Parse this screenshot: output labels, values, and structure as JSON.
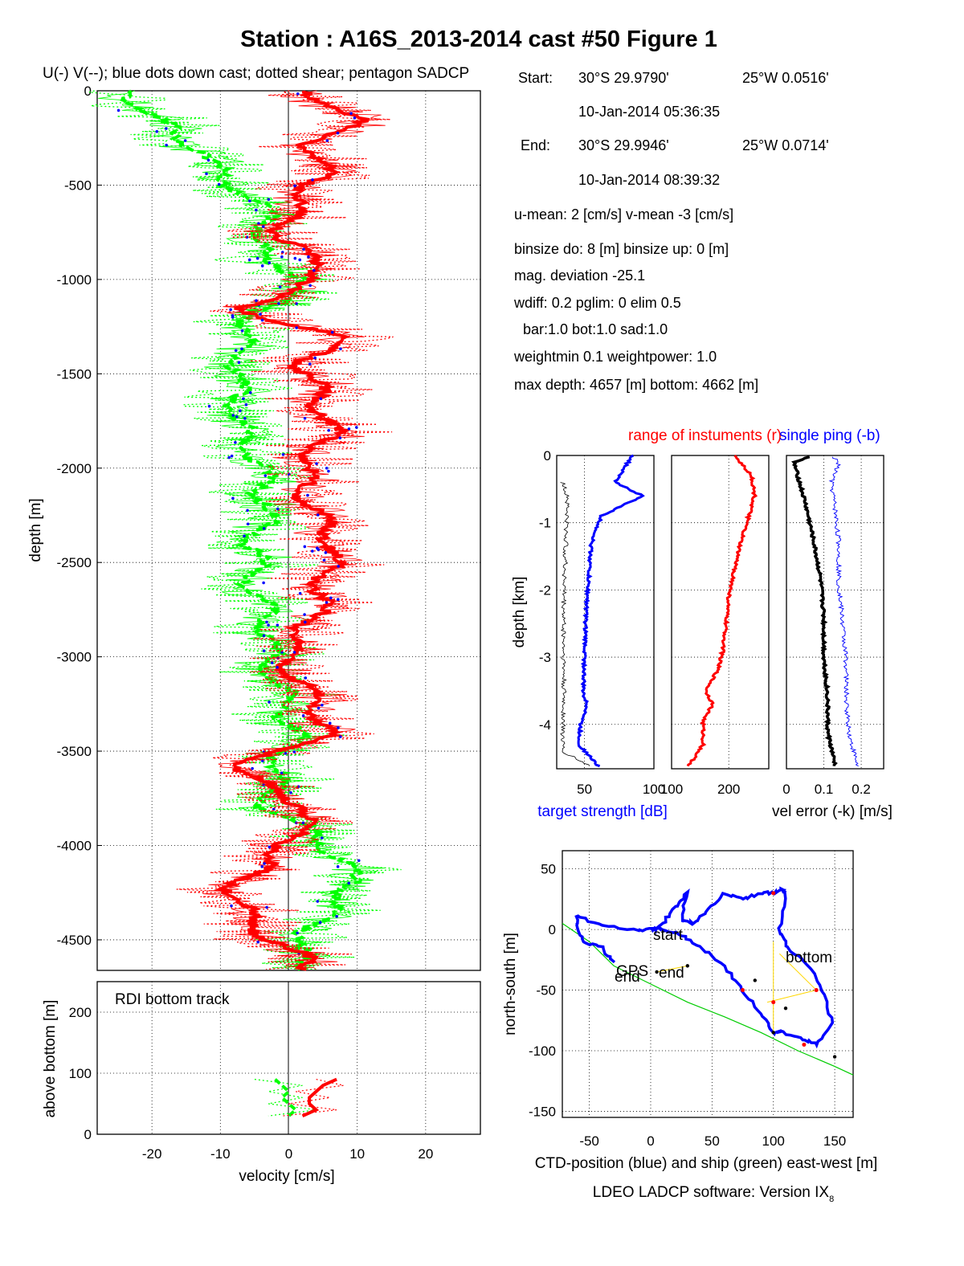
{
  "figure": {
    "title": "Station : A16S_2013-2014 cast #50  Figure 1",
    "footer": "LDEO LADCP software: Version IX",
    "footer_sub": "8"
  },
  "colors": {
    "u_profile": "#ff0000",
    "v_profile": "#00ff00",
    "downcast_dots": "#0000ff",
    "ctd_track": "#0000ff",
    "ship_track": "#00cc00",
    "target_strength": "#0000ff",
    "noise_floor": "#000000",
    "range": "#ff0000",
    "vel_error": "#000000",
    "single_ping": "#0000ff",
    "link_lines": "#ffd700"
  },
  "info": {
    "start_label": "Start:",
    "start_lat": "30°S 29.9790'",
    "start_lon": "25°W  0.0516'",
    "start_time": "10-Jan-2014 05:36:35",
    "end_label": "End:",
    "end_lat": "30°S 29.9946'",
    "end_lon": "25°W  0.0714'",
    "end_time": "10-Jan-2014 08:39:32",
    "means": "u-mean:   2 [cm/s]    v-mean  -3 [cm/s]",
    "binsize": "binsize do:  8 [m]  binsize up:   0 [m]",
    "magdev": "mag. deviation -25.1",
    "wdiff": "wdiff: 0.2  pglim: 0  elim 0.5",
    "weights": "bar:1.0 bot:1.0 sad:1.0",
    "weightmin": "weightmin 0.1  weightpower: 1.0",
    "maxdepth": "max depth: 4657 [m]   bottom: 4662 [m]"
  },
  "chart_data": [
    {
      "id": "velocity_profile",
      "type": "line",
      "title": "U(-) V(--); blue dots down cast; dotted shear; pentagon SADCP",
      "xlabel": "",
      "ylabel": "depth [m]",
      "xlim": [
        -28,
        28
      ],
      "ylim": [
        -4662,
        0
      ],
      "yticks": [
        0,
        -500,
        -1000,
        -1500,
        -2000,
        -2500,
        -3000,
        -3500,
        -4000,
        -4500
      ],
      "grid": true,
      "series": [
        {
          "name": "U",
          "depth": [
            0,
            -150,
            -300,
            -450,
            -600,
            -750,
            -900,
            -1000,
            -1150,
            -1300,
            -1450,
            -1600,
            -1800,
            -2000,
            -2200,
            -2400,
            -2600,
            -2800,
            -3000,
            -3200,
            -3400,
            -3600,
            -3800,
            -4000,
            -4200,
            -4400,
            -4600
          ],
          "values": [
            3,
            10,
            3,
            5,
            1,
            -1,
            3,
            5,
            -8,
            8,
            2,
            4,
            6,
            2,
            3,
            7,
            5,
            4,
            -1,
            3,
            6,
            -8,
            3,
            0,
            -8,
            -6,
            2
          ]
        },
        {
          "name": "V",
          "depth": [
            0,
            -150,
            -300,
            -450,
            -600,
            -750,
            -900,
            -1000,
            -1150,
            -1300,
            -1450,
            -1600,
            -1800,
            -2000,
            -2200,
            -2400,
            -2600,
            -2800,
            -3000,
            -3200,
            -3400,
            -3600,
            -3800,
            -4000,
            -4200,
            -4400,
            -4600
          ],
          "values": [
            -23,
            -20,
            -13,
            -10,
            -4,
            -3,
            -5,
            4,
            -4,
            -7,
            -7,
            -8,
            -7,
            -4,
            -3,
            -5,
            -5,
            -3,
            -3,
            -1,
            1,
            -2,
            -3,
            6,
            10,
            4,
            1
          ]
        }
      ]
    },
    {
      "id": "bottom_track",
      "type": "line",
      "title": "RDI bottom track",
      "xlabel": "velocity [cm/s]",
      "ylabel": "above bottom [m]",
      "xlim": [
        -28,
        28
      ],
      "ylim": [
        0,
        250
      ],
      "xticks": [
        -20,
        -10,
        0,
        10,
        20
      ],
      "yticks": [
        0,
        100,
        200
      ],
      "grid": true,
      "series": [
        {
          "name": "U",
          "height": [
            90,
            80,
            70,
            60,
            50,
            40,
            30
          ],
          "values": [
            7,
            5,
            4,
            3,
            3,
            4,
            2
          ]
        },
        {
          "name": "V",
          "height": [
            90,
            80,
            70,
            60,
            50,
            40,
            30
          ],
          "values": [
            -2,
            -1,
            0,
            -1,
            0,
            1,
            0
          ]
        }
      ]
    },
    {
      "id": "target_strength",
      "type": "line",
      "title": "",
      "xlabel": "target strength [dB]",
      "ylabel": "depth [km]",
      "xlim": [
        30,
        100
      ],
      "ylim": [
        -4.66,
        0
      ],
      "xticks": [
        50,
        100
      ],
      "yticks": [
        0,
        -1,
        -2,
        -3,
        -4
      ],
      "grid": true,
      "series": [
        {
          "name": "",
          "depth": [
            0,
            -0.2,
            -0.4,
            -0.6,
            -0.9,
            -1.3,
            -1.8,
            -2.4,
            -3.0,
            -3.5,
            -3.75,
            -4.0,
            -4.3,
            -4.62
          ],
          "values": [
            85,
            78,
            72,
            92,
            62,
            55,
            53,
            51,
            50,
            49,
            52,
            47,
            46,
            60
          ]
        },
        {
          "name": "",
          "depth": [
            -0.4,
            -0.6,
            -1.0,
            -1.6,
            -2.2,
            -3.0,
            -3.8,
            -4.4,
            -4.62
          ],
          "values": [
            34,
            38,
            37,
            36,
            35,
            35,
            35,
            34,
            54
          ]
        }
      ]
    },
    {
      "id": "range",
      "type": "line",
      "title": "range of instuments (r)",
      "xlabel": "",
      "ylabel": "",
      "xlim": [
        100,
        270
      ],
      "ylim": [
        -4.66,
        0
      ],
      "xticks": [
        100,
        200
      ],
      "yticks": [
        0,
        -1,
        -2,
        -3,
        -4
      ],
      "grid": true,
      "series": [
        {
          "name": "",
          "depth": [
            0,
            -0.15,
            -0.3,
            -0.6,
            -0.9,
            -1.3,
            -1.7,
            -2.1,
            -2.5,
            -2.9,
            -3.2,
            -3.5,
            -3.7,
            -3.95,
            -4.3,
            -4.62
          ],
          "values": [
            210,
            225,
            240,
            245,
            235,
            220,
            210,
            200,
            195,
            190,
            180,
            160,
            172,
            155,
            155,
            130
          ]
        }
      ]
    },
    {
      "id": "vel_error",
      "type": "line",
      "title": "single ping (-b)",
      "xlabel": "vel error (-k) [m/s]",
      "ylabel": "",
      "xlim": [
        0,
        0.26
      ],
      "ylim": [
        -4.66,
        0
      ],
      "xticks": [
        0,
        0.1,
        0.2
      ],
      "yticks": [
        0,
        -1,
        -2,
        -3,
        -4
      ],
      "grid": true,
      "series": [
        {
          "name": "",
          "depth": [
            -0.02,
            -0.1,
            -0.3,
            -0.7,
            -1.2,
            -1.8,
            -2.4,
            -3.0,
            -3.6,
            -4.1,
            -4.62
          ],
          "values": [
            0.06,
            0.02,
            0.03,
            0.05,
            0.07,
            0.09,
            0.1,
            0.1,
            0.11,
            0.11,
            0.13
          ]
        },
        {
          "name": "",
          "depth": [
            -0.02,
            -0.1,
            -0.4,
            -0.8,
            -1.3,
            -1.9,
            -2.5,
            -3.1,
            -3.7,
            -4.2,
            -4.62
          ],
          "values": [
            0.12,
            0.14,
            0.12,
            0.13,
            0.14,
            0.14,
            0.15,
            0.16,
            0.16,
            0.17,
            0.19
          ]
        }
      ]
    },
    {
      "id": "position",
      "type": "line",
      "title": "",
      "xlabel": "CTD-position (blue) and ship (green) east-west [m]",
      "ylabel": "north-south [m]",
      "xlim": [
        -72,
        165
      ],
      "ylim": [
        -155,
        65
      ],
      "xticks": [
        -50,
        0,
        50,
        100,
        150
      ],
      "yticks": [
        50,
        0,
        -50,
        -100,
        -150
      ],
      "grid": true,
      "series": [
        {
          "name": "CTD",
          "x": [
            -30,
            -40,
            -55,
            -60,
            -60,
            -40,
            -10,
            2,
            10,
            20,
            30,
            25,
            35,
            45,
            60,
            75,
            90,
            100,
            108,
            110,
            105,
            112,
            125,
            140,
            148,
            135,
            125,
            108,
            100,
            90,
            75,
            60,
            40,
            25,
            10,
            5,
            0
          ],
          "y": [
            -27,
            -15,
            -10,
            3,
            12,
            3,
            0,
            0,
            5,
            18,
            30,
            8,
            5,
            15,
            30,
            25,
            30,
            30,
            33,
            30,
            0,
            -15,
            -25,
            -50,
            -78,
            -95,
            -90,
            -85,
            -85,
            -70,
            -50,
            -30,
            -15,
            -5,
            0,
            0,
            0
          ]
        },
        {
          "name": "ship",
          "x": [
            -72,
            -50,
            -30,
            0,
            30,
            60,
            90,
            120,
            150,
            165
          ],
          "y": [
            5,
            -10,
            -30,
            -45,
            -60,
            -72,
            -85,
            -100,
            -113,
            -120
          ]
        }
      ],
      "annotations": [
        "start",
        "bottom",
        "GPS",
        "end",
        "end"
      ]
    }
  ]
}
